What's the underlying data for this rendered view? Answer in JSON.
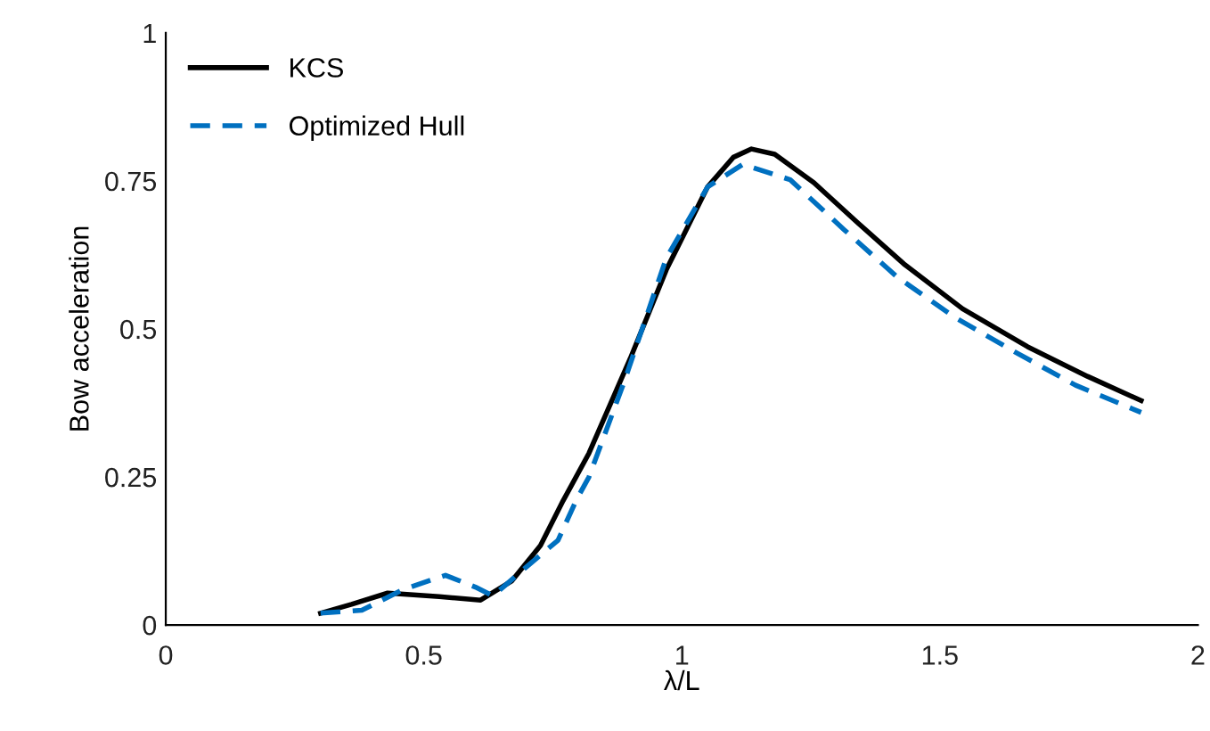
{
  "chart_data": {
    "type": "line",
    "xlabel": "λ/L",
    "ylabel": "Bow acceleration",
    "xlim": [
      0,
      2
    ],
    "ylim": [
      0,
      1
    ],
    "xticks": [
      0,
      0.5,
      1,
      1.5,
      2
    ],
    "yticks": [
      0,
      0.25,
      0.5,
      0.75,
      1
    ],
    "grid": false,
    "legend": "top left",
    "marker": "none",
    "series": [
      {
        "name": "KCS",
        "color": "#000000",
        "line_style": "solid",
        "x": [
          0.3,
          0.36,
          0.43,
          0.53,
          0.61,
          0.67,
          0.726,
          0.77,
          0.82,
          0.9,
          0.97,
          1.05,
          1.1,
          1.135,
          1.18,
          1.256,
          1.34,
          1.43,
          1.544,
          1.67,
          1.786,
          1.89
        ],
        "values": [
          0.02,
          0.035,
          0.054,
          0.048,
          0.042,
          0.074,
          0.134,
          0.21,
          0.29,
          0.45,
          0.6,
          0.74,
          0.79,
          0.804,
          0.795,
          0.747,
          0.68,
          0.61,
          0.534,
          0.47,
          0.42,
          0.379
        ]
      },
      {
        "name": "Optimized Hull",
        "color": "#0070c0",
        "line_style": "dashed",
        "x": [
          0.3,
          0.38,
          0.46,
          0.542,
          0.6,
          0.634,
          0.7,
          0.76,
          0.795,
          0.82,
          0.888,
          0.97,
          1.05,
          1.118,
          1.21,
          1.314,
          1.417,
          1.53,
          1.648,
          1.763,
          1.89
        ],
        "values": [
          0.02,
          0.025,
          0.06,
          0.084,
          0.064,
          0.049,
          0.099,
          0.143,
          0.21,
          0.25,
          0.41,
          0.62,
          0.74,
          0.778,
          0.752,
          0.668,
          0.588,
          0.519,
          0.46,
          0.405,
          0.359
        ]
      }
    ]
  }
}
